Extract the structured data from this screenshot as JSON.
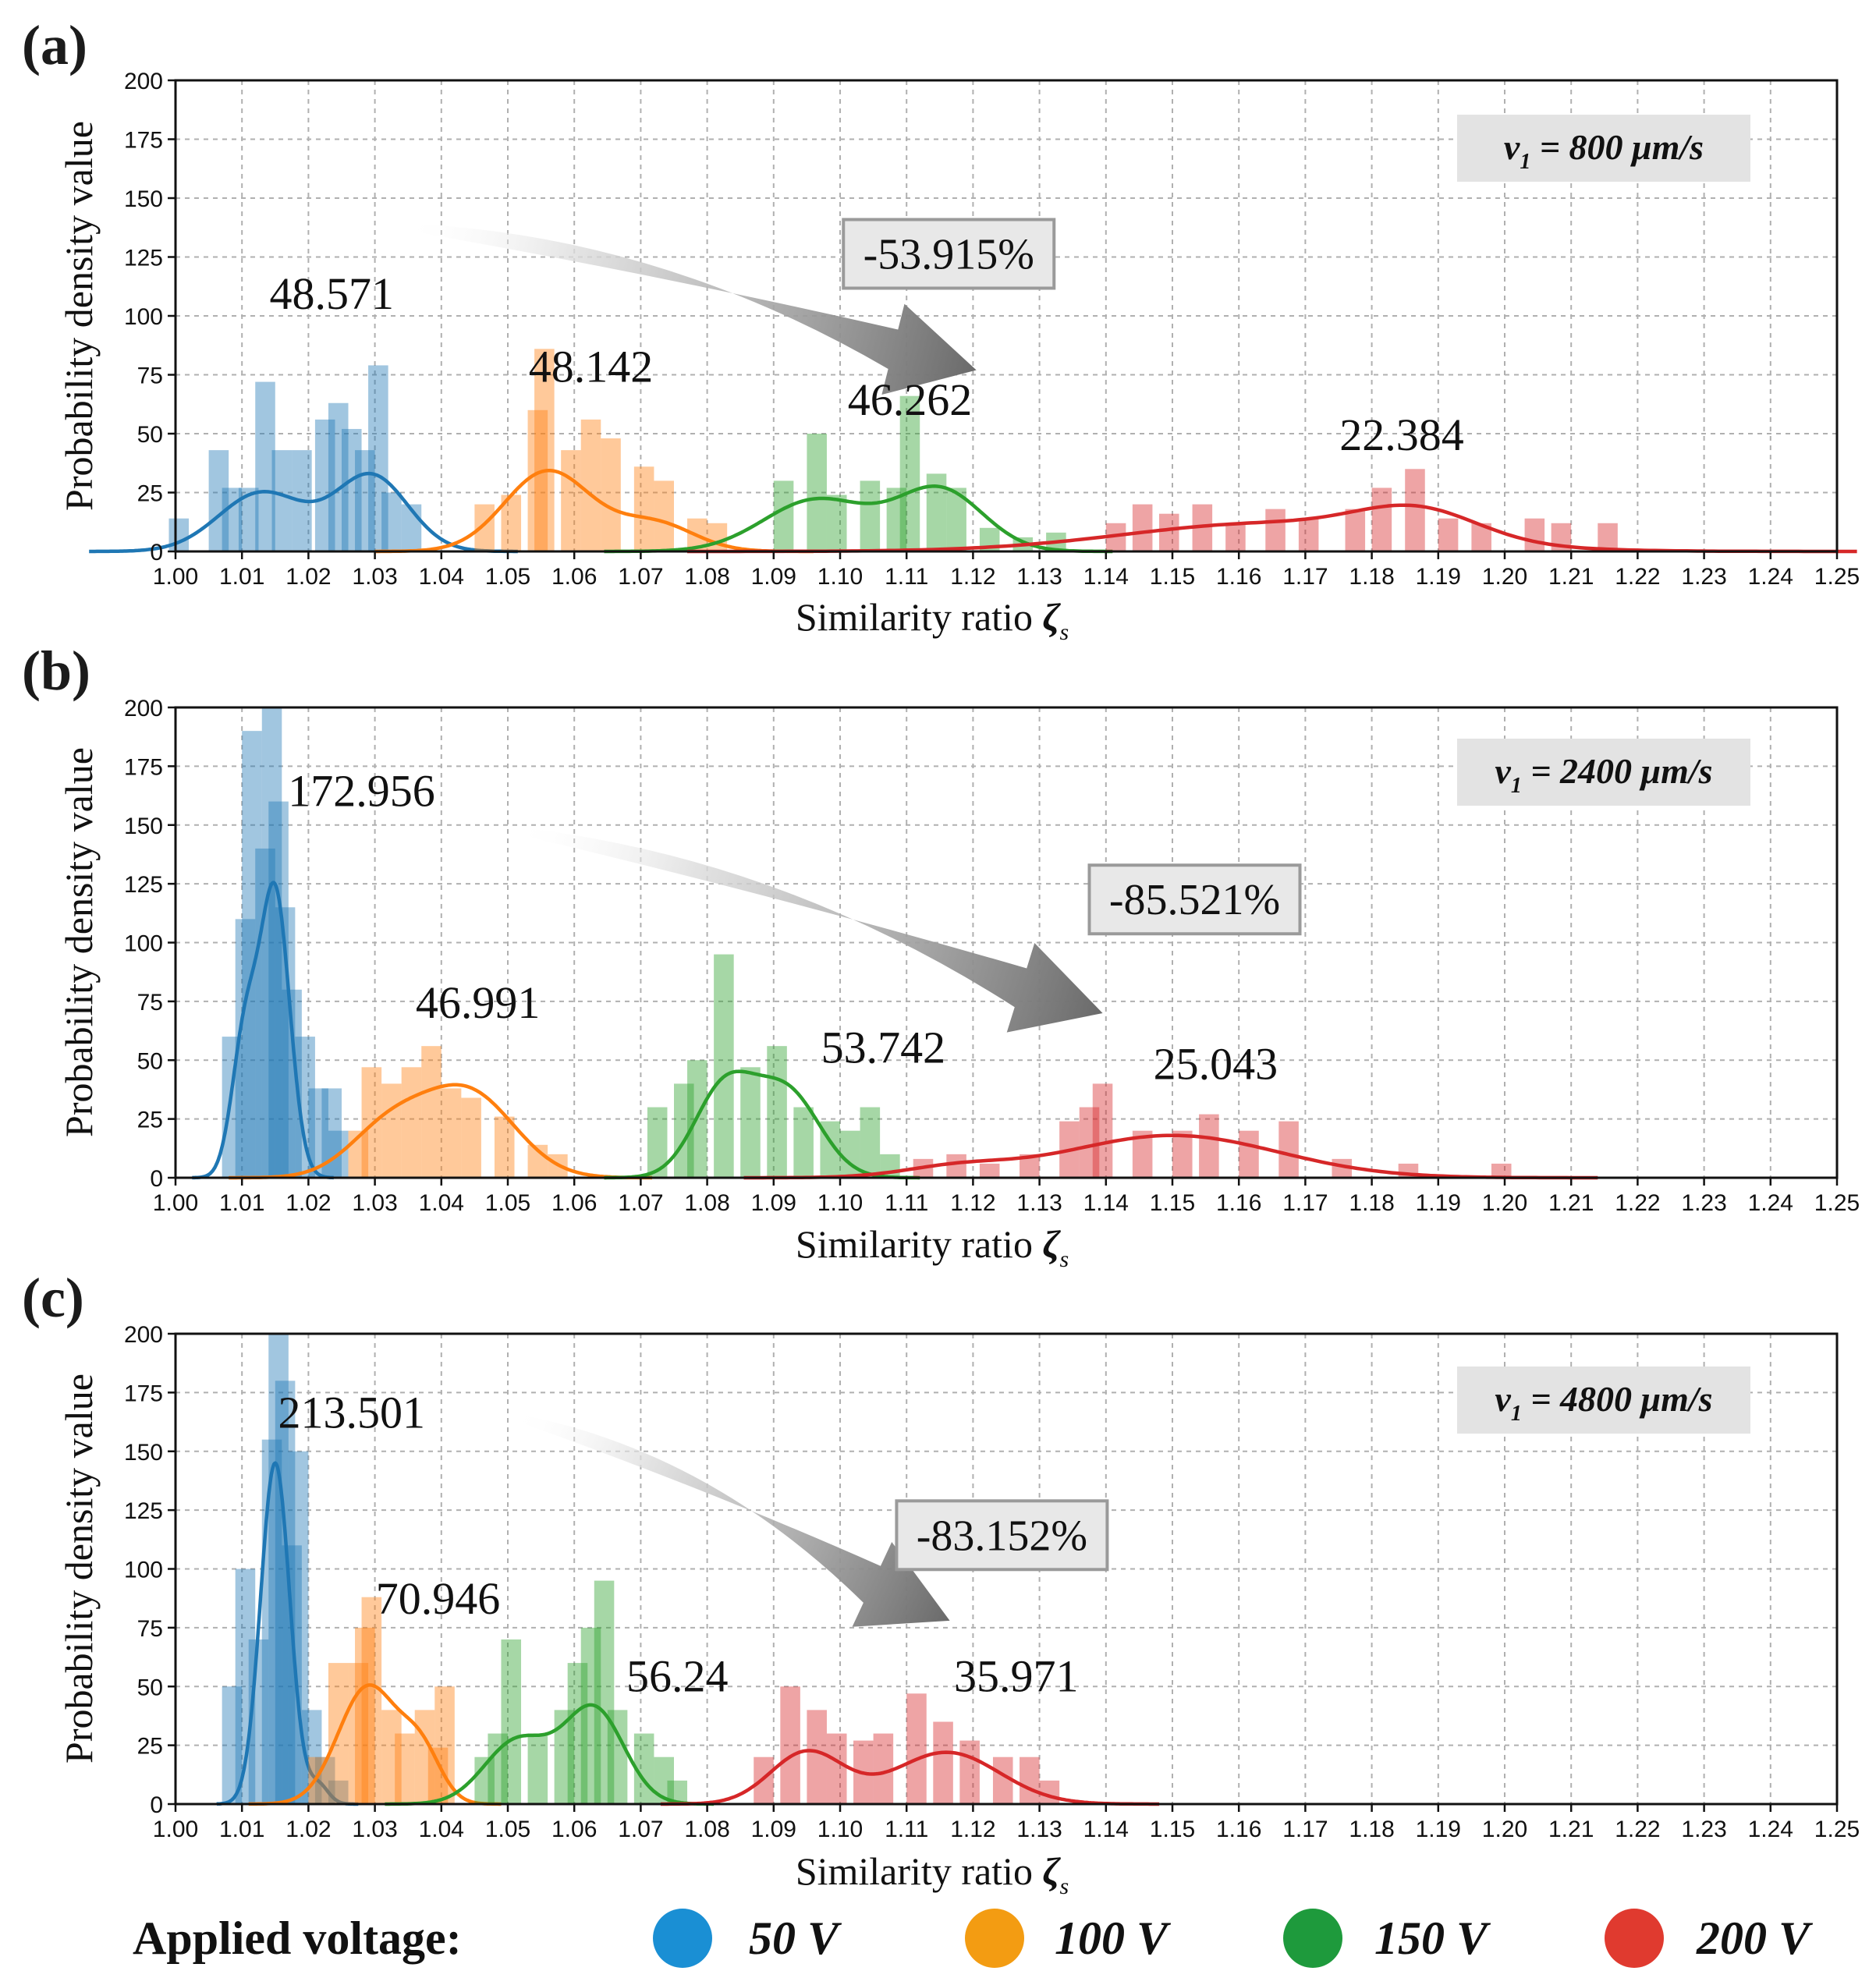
{
  "colors": {
    "50V": "#1f77b4",
    "100V": "#ff7f0e",
    "150V": "#2ca02c",
    "200V": "#d62728",
    "legend_50V": "#1a8fd4",
    "legend_100V": "#f39c12",
    "legend_150V": "#1e9a3c",
    "legend_200V": "#e03a2f"
  },
  "chart_data": [
    {
      "panel": "(a)",
      "type": "histogram+kde",
      "xlabel": "Similarity ratio ",
      "xlabel_symbol": "ζ",
      "xlabel_sub": "s",
      "ylabel": "Probability density value",
      "xlim": [
        1.0,
        1.25
      ],
      "ylim": [
        0,
        200
      ],
      "xticks": [
        "1.00",
        "1.01",
        "1.02",
        "1.03",
        "1.04",
        "1.05",
        "1.06",
        "1.07",
        "1.08",
        "1.09",
        "1.10",
        "1.11",
        "1.12",
        "1.13",
        "1.14",
        "1.15",
        "1.16",
        "1.17",
        "1.18",
        "1.19",
        "1.20",
        "1.21",
        "1.22",
        "1.23",
        "1.24",
        "1.25"
      ],
      "yticks": [
        "0",
        "25",
        "50",
        "75",
        "100",
        "125",
        "150",
        "175",
        "200"
      ],
      "speed_prefix": "v",
      "speed_sub": "1",
      "speed_suffix": " = 800 μm/s",
      "change": "-53.915%",
      "series": [
        {
          "name": "50 V",
          "kde": [
            {
              "mu": 1.013,
              "s": 0.0065,
              "h": 25
            },
            {
              "mu": 1.0295,
              "s": 0.0055,
              "h": 32
            }
          ],
          "bars": [
            [
              1.0005,
              14
            ],
            [
              1.0065,
              43
            ],
            [
              1.0085,
              27
            ],
            [
              1.011,
              27
            ],
            [
              1.0135,
              72
            ],
            [
              1.016,
              43
            ],
            [
              1.019,
              43
            ],
            [
              1.0225,
              56
            ],
            [
              1.0245,
              63
            ],
            [
              1.0265,
              52
            ],
            [
              1.0285,
              43
            ],
            [
              1.0305,
              79
            ],
            [
              1.0325,
              25
            ],
            [
              1.0355,
              20
            ]
          ],
          "peak_label": "48.571",
          "label_at": [
            1.0235,
            103
          ]
        },
        {
          "name": "100 V",
          "kde": [
            {
              "mu": 1.056,
              "s": 0.0065,
              "h": 34
            },
            {
              "mu": 1.072,
              "s": 0.006,
              "h": 12
            }
          ],
          "bars": [
            [
              1.0465,
              20
            ],
            [
              1.0505,
              24
            ],
            [
              1.0545,
              60
            ],
            [
              1.0555,
              86
            ],
            [
              1.0595,
              43
            ],
            [
              1.0625,
              56
            ],
            [
              1.0655,
              48
            ],
            [
              1.0705,
              36
            ],
            [
              1.0735,
              30
            ],
            [
              1.0785,
              14
            ],
            [
              1.0815,
              12
            ]
          ],
          "peak_label": "48.142",
          "label_at": [
            1.0625,
            72
          ]
        },
        {
          "name": "150 V",
          "kde": [
            {
              "mu": 1.0965,
              "s": 0.008,
              "h": 22
            },
            {
              "mu": 1.115,
              "s": 0.0065,
              "h": 26
            }
          ],
          "bars": [
            [
              1.0915,
              30
            ],
            [
              1.0965,
              50
            ],
            [
              1.0995,
              24
            ],
            [
              1.1045,
              30
            ],
            [
              1.1085,
              27
            ],
            [
              1.1105,
              66
            ],
            [
              1.1145,
              33
            ],
            [
              1.1175,
              27
            ],
            [
              1.1225,
              10
            ],
            [
              1.1275,
              6
            ],
            [
              1.1325,
              8
            ]
          ],
          "peak_label": "46.262",
          "label_at": [
            1.1105,
            58
          ]
        },
        {
          "name": "200 V",
          "kde": [
            {
              "mu": 1.165,
              "s": 0.022,
              "h": 12
            },
            {
              "mu": 1.187,
              "s": 0.009,
              "h": 12
            }
          ],
          "bars": [
            [
              1.1415,
              12
            ],
            [
              1.1455,
              20
            ],
            [
              1.1495,
              16
            ],
            [
              1.1545,
              20
            ],
            [
              1.1595,
              12
            ],
            [
              1.1655,
              18
            ],
            [
              1.1705,
              14
            ],
            [
              1.1775,
              18
            ],
            [
              1.1815,
              27
            ],
            [
              1.1865,
              35
            ],
            [
              1.1915,
              14
            ],
            [
              1.1965,
              12
            ],
            [
              1.2045,
              14
            ],
            [
              1.2085,
              12
            ],
            [
              1.2155,
              12
            ]
          ],
          "peak_label": "22.384",
          "label_at": [
            1.1845,
            43
          ]
        }
      ],
      "arrow": {
        "from": [
          1.034,
          138
        ],
        "to": [
          1.1205,
          77
        ]
      },
      "box_at": [
        1.1005,
        126
      ]
    },
    {
      "panel": "(b)",
      "type": "histogram+kde",
      "xlabel": "Similarity ratio ",
      "xlabel_symbol": "ζ",
      "xlabel_sub": "s",
      "ylabel": "Probability density value",
      "xlim": [
        1.0,
        1.25
      ],
      "ylim": [
        0,
        200
      ],
      "xticks": [
        "1.00",
        "1.01",
        "1.02",
        "1.03",
        "1.04",
        "1.05",
        "1.06",
        "1.07",
        "1.08",
        "1.09",
        "1.10",
        "1.11",
        "1.12",
        "1.13",
        "1.14",
        "1.15",
        "1.16",
        "1.17",
        "1.18",
        "1.19",
        "1.20",
        "1.21",
        "1.22",
        "1.23",
        "1.24",
        "1.25"
      ],
      "yticks": [
        "0",
        "25",
        "50",
        "75",
        "100",
        "125",
        "150",
        "175",
        "200"
      ],
      "speed_prefix": "v",
      "speed_sub": "1",
      "speed_suffix": " = 2400 μm/s",
      "change": "-85.521%",
      "series": [
        {
          "name": "50 V",
          "kde": [
            {
              "mu": 1.0105,
              "s": 0.002,
              "h": 60
            },
            {
              "mu": 1.015,
              "s": 0.0022,
              "h": 120
            }
          ],
          "bars": [
            [
              1.0085,
              60
            ],
            [
              1.0105,
              110
            ],
            [
              1.0115,
              190
            ],
            [
              1.0135,
              140
            ],
            [
              1.0145,
              200
            ],
            [
              1.0155,
              160
            ],
            [
              1.0165,
              115
            ],
            [
              1.0175,
              80
            ],
            [
              1.0195,
              60
            ],
            [
              1.0215,
              38
            ],
            [
              1.0235,
              38
            ],
            [
              1.0245,
              20
            ]
          ],
          "peak_label": "172.956",
          "label_at": [
            1.028,
            158
          ]
        },
        {
          "name": "100 V",
          "kde": [
            {
              "mu": 1.032,
              "s": 0.006,
              "h": 20
            },
            {
              "mu": 1.044,
              "s": 0.007,
              "h": 36
            }
          ],
          "bars": [
            [
              1.0275,
              20
            ],
            [
              1.0295,
              47
            ],
            [
              1.0325,
              40
            ],
            [
              1.0355,
              47
            ],
            [
              1.0385,
              56
            ],
            [
              1.0415,
              38
            ],
            [
              1.0445,
              34
            ],
            [
              1.0495,
              26
            ],
            [
              1.0545,
              14
            ],
            [
              1.0575,
              10
            ]
          ],
          "peak_label": "46.991",
          "label_at": [
            1.0455,
            68
          ]
        },
        {
          "name": "150 V",
          "kde": [
            {
              "mu": 1.0825,
              "s": 0.0045,
              "h": 37
            },
            {
              "mu": 1.092,
              "s": 0.005,
              "h": 36
            }
          ],
          "bars": [
            [
              1.0725,
              30
            ],
            [
              1.0765,
              40
            ],
            [
              1.0785,
              50
            ],
            [
              1.0825,
              95
            ],
            [
              1.0865,
              47
            ],
            [
              1.0905,
              56
            ],
            [
              1.0945,
              30
            ],
            [
              1.0985,
              24
            ],
            [
              1.1015,
              20
            ],
            [
              1.1045,
              30
            ],
            [
              1.1075,
              10
            ]
          ],
          "peak_label": "53.742",
          "label_at": [
            1.1065,
            49
          ]
        },
        {
          "name": "200 V",
          "kde": [
            {
              "mu": 1.15,
              "s": 0.016,
              "h": 18
            },
            {
              "mu": 1.1175,
              "s": 0.008,
              "h": 4
            }
          ],
          "bars": [
            [
              1.1125,
              8
            ],
            [
              1.1175,
              10
            ],
            [
              1.1225,
              6
            ],
            [
              1.1285,
              10
            ],
            [
              1.1345,
              24
            ],
            [
              1.1375,
              30
            ],
            [
              1.1395,
              40
            ],
            [
              1.1455,
              20
            ],
            [
              1.1515,
              20
            ],
            [
              1.1555,
              27
            ],
            [
              1.1615,
              20
            ],
            [
              1.1675,
              24
            ],
            [
              1.1755,
              8
            ],
            [
              1.1855,
              6
            ],
            [
              1.1995,
              6
            ]
          ],
          "peak_label": "25.043",
          "label_at": [
            1.1565,
            42
          ]
        }
      ],
      "arrow": {
        "from": [
          1.0505,
          148
        ],
        "to": [
          1.1395,
          70
        ]
      },
      "box_at": [
        1.1375,
        118
      ]
    },
    {
      "panel": "(c)",
      "type": "histogram+kde",
      "xlabel": "Similarity ratio ",
      "xlabel_symbol": "ζ",
      "xlabel_sub": "s",
      "ylabel": "Probability density value",
      "xlim": [
        1.0,
        1.25
      ],
      "ylim": [
        0,
        200
      ],
      "xticks": [
        "1.00",
        "1.01",
        "1.02",
        "1.03",
        "1.04",
        "1.05",
        "1.06",
        "1.07",
        "1.08",
        "1.09",
        "1.10",
        "1.11",
        "1.12",
        "1.13",
        "1.14",
        "1.15",
        "1.16",
        "1.17",
        "1.18",
        "1.19",
        "1.20",
        "1.21",
        "1.22",
        "1.23",
        "1.24",
        "1.25"
      ],
      "yticks": [
        "0",
        "25",
        "50",
        "75",
        "100",
        "125",
        "150",
        "175",
        "200"
      ],
      "speed_prefix": "v",
      "speed_sub": "1",
      "speed_suffix": " = 4800 μm/s",
      "change": "-83.152%",
      "series": [
        {
          "name": "50 V",
          "kde": [
            {
              "mu": 1.015,
              "s": 0.0022,
              "h": 145
            },
            {
              "mu": 1.0215,
              "s": 0.0015,
              "h": 8
            }
          ],
          "bars": [
            [
              1.0085,
              50
            ],
            [
              1.0105,
              100
            ],
            [
              1.0125,
              70
            ],
            [
              1.0145,
              155
            ],
            [
              1.0155,
              200
            ],
            [
              1.0165,
              180
            ],
            [
              1.0175,
              110
            ],
            [
              1.0185,
              150
            ],
            [
              1.0205,
              40
            ],
            [
              1.0225,
              20
            ],
            [
              1.0245,
              10
            ]
          ],
          "peak_label": "213.501",
          "label_at": [
            1.0265,
            160
          ]
        },
        {
          "name": "100 V",
          "kde": [
            {
              "mu": 1.029,
              "s": 0.0045,
              "h": 50
            },
            {
              "mu": 1.037,
              "s": 0.003,
              "h": 20
            }
          ],
          "bars": [
            [
              1.0215,
              20
            ],
            [
              1.0245,
              60
            ],
            [
              1.0275,
              60
            ],
            [
              1.0285,
              75
            ],
            [
              1.0295,
              88
            ],
            [
              1.0325,
              40
            ],
            [
              1.0345,
              30
            ],
            [
              1.0375,
              40
            ],
            [
              1.0395,
              24
            ],
            [
              1.0405,
              50
            ]
          ],
          "peak_label": "70.946",
          "label_at": [
            1.0395,
            81
          ]
        },
        {
          "name": "150 V",
          "kde": [
            {
              "mu": 1.0515,
              "s": 0.005,
              "h": 27
            },
            {
              "mu": 1.063,
              "s": 0.0045,
              "h": 40
            }
          ],
          "bars": [
            [
              1.0465,
              20
            ],
            [
              1.0485,
              30
            ],
            [
              1.0505,
              70
            ],
            [
              1.0545,
              30
            ],
            [
              1.0585,
              40
            ],
            [
              1.0605,
              60
            ],
            [
              1.0625,
              75
            ],
            [
              1.0645,
              95
            ],
            [
              1.0665,
              40
            ],
            [
              1.0705,
              30
            ],
            [
              1.0735,
              20
            ],
            [
              1.0755,
              10
            ]
          ],
          "peak_label": "56.24",
          "label_at": [
            1.0755,
            48
          ]
        },
        {
          "name": "200 V",
          "kde": [
            {
              "mu": 1.095,
              "s": 0.0055,
              "h": 22
            },
            {
              "mu": 1.116,
              "s": 0.008,
              "h": 22
            }
          ],
          "bars": [
            [
              1.0885,
              20
            ],
            [
              1.0925,
              50
            ],
            [
              1.0965,
              40
            ],
            [
              1.0995,
              30
            ],
            [
              1.1035,
              27
            ],
            [
              1.1065,
              30
            ],
            [
              1.1115,
              47
            ],
            [
              1.1155,
              35
            ],
            [
              1.1195,
              27
            ],
            [
              1.1245,
              20
            ],
            [
              1.1285,
              20
            ],
            [
              1.1315,
              10
            ]
          ],
          "peak_label": "35.971",
          "label_at": [
            1.1265,
            48
          ]
        }
      ],
      "arrow": {
        "from": [
          1.0505,
          165
        ],
        "to": [
          1.1165,
          78
        ]
      },
      "box_at": [
        1.1085,
        114
      ]
    }
  ],
  "legend": {
    "title": "Applied voltage:",
    "items": [
      "50 V",
      "100 V",
      "150 V",
      "200 V"
    ]
  }
}
